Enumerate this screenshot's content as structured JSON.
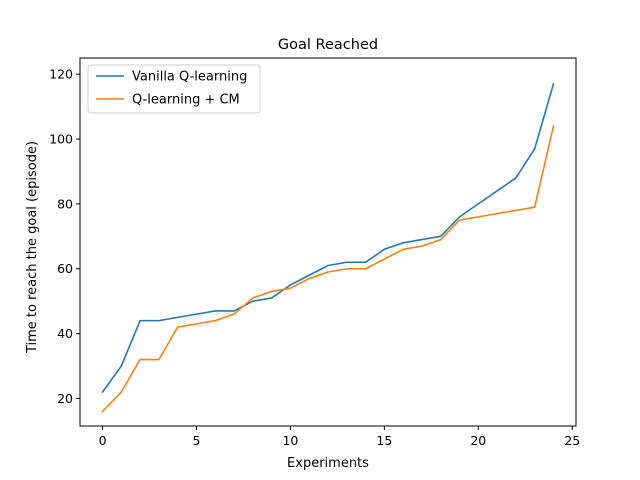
{
  "chart_data": {
    "type": "line",
    "title": "Goal Reached",
    "xlabel": "Experiments",
    "ylabel": "Time to reach the goal (episode)",
    "xlim": [
      -1.2,
      25.2
    ],
    "ylim": [
      11.5,
      125
    ],
    "xticks": [
      0,
      5,
      10,
      15,
      20,
      25
    ],
    "yticks": [
      20,
      40,
      60,
      80,
      100,
      120
    ],
    "grid": false,
    "legend_position": "top-left",
    "x": [
      0,
      1,
      2,
      3,
      4,
      5,
      6,
      7,
      8,
      9,
      10,
      11,
      12,
      13,
      14,
      15,
      16,
      17,
      18,
      19,
      20,
      21,
      22,
      23,
      24
    ],
    "series": [
      {
        "name": "Vanilla Q-learning",
        "color": "#1f77b4",
        "values": [
          22,
          30,
          44,
          44,
          45,
          46,
          47,
          47,
          50,
          51,
          55,
          58,
          61,
          62,
          62,
          66,
          68,
          69,
          70,
          76,
          80,
          84,
          88,
          97,
          117
        ]
      },
      {
        "name": "Q-learning + CM",
        "color": "#ff7f0e",
        "values": [
          16,
          22,
          32,
          32,
          42,
          43,
          44,
          46,
          51,
          53,
          54,
          57,
          59,
          60,
          60,
          63,
          66,
          67,
          69,
          75,
          76,
          77,
          78,
          79,
          104
        ]
      }
    ]
  }
}
